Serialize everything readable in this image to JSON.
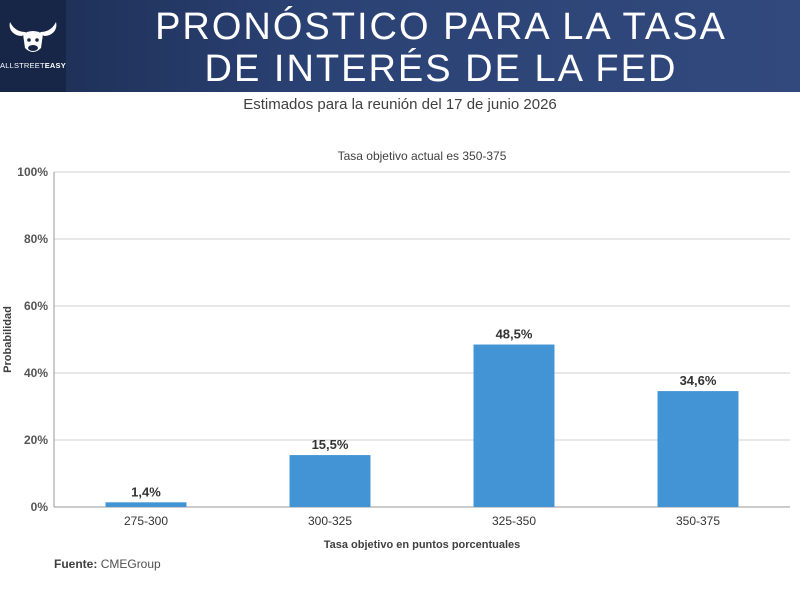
{
  "header": {
    "title_line1": "PRONÓSTICO PARA LA TASA",
    "title_line2": "DE INTERÉS DE LA FED",
    "logo_text_light": "ALLSTREET",
    "logo_text_bold": "EASY"
  },
  "subtitle": "Estimados para la reunión del 17 de junio 2026",
  "source": {
    "label": "Fuente:",
    "value": "CMEGroup"
  },
  "chart_data": {
    "type": "bar",
    "title": "Tasa objetivo actual es 350-375",
    "xlabel": "Tasa objetivo en puntos porcentuales",
    "ylabel": "Probabilidad",
    "categories": [
      "275-300",
      "300-325",
      "325-350",
      "350-375"
    ],
    "values": [
      1.4,
      15.5,
      48.5,
      34.6
    ],
    "value_labels": [
      "1,4%",
      "15,5%",
      "48,5%",
      "34,6%"
    ],
    "y_ticks": [
      "0%",
      "20%",
      "40%",
      "60%",
      "80%",
      "100%"
    ],
    "ylim": [
      0,
      100
    ],
    "grid": true,
    "bar_color": "#4394d4"
  }
}
